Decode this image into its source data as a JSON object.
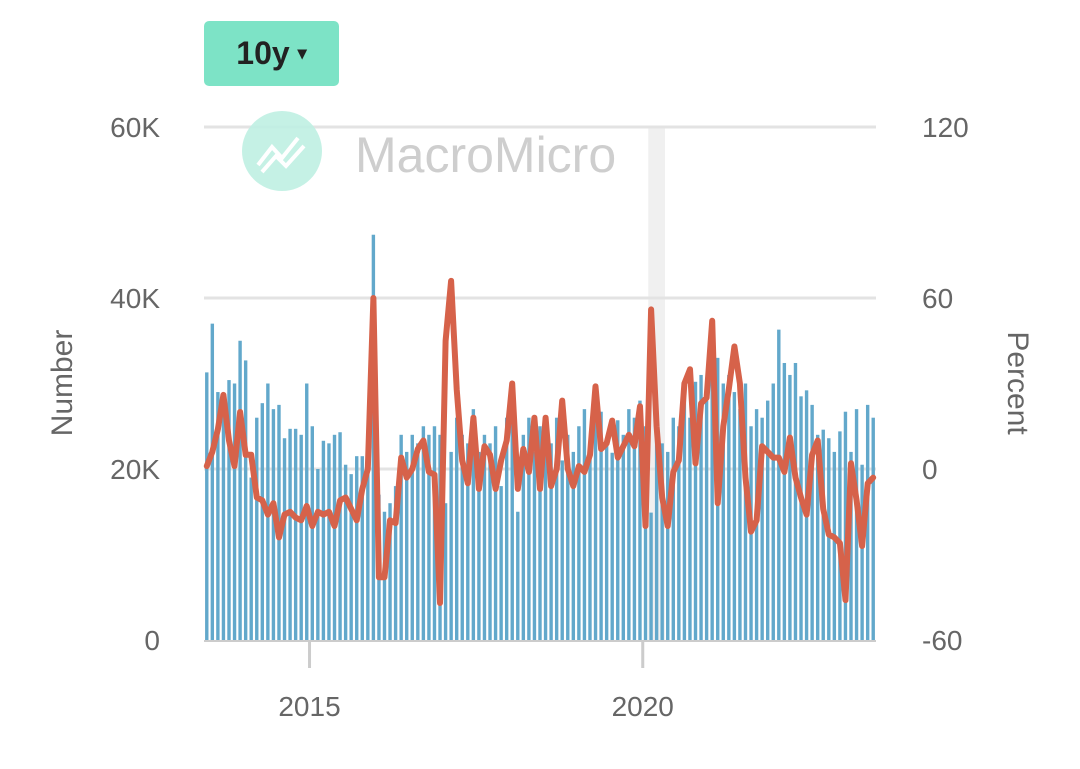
{
  "controls": {
    "range_label": "10y",
    "caret_icon": "caret-down-icon"
  },
  "watermark": {
    "text": "MacroMicro",
    "color": "#bff0e3"
  },
  "chart_data": {
    "type": "bar+line",
    "title": "",
    "x_start": "2013-06",
    "x_end": "2023-06",
    "x_ticks": [
      "2015",
      "2020"
    ],
    "left_axis": {
      "label": "Number",
      "ticks": [
        "0",
        "20K",
        "40K",
        "60K"
      ],
      "range": [
        0,
        60000
      ]
    },
    "right_axis": {
      "label": "Percent",
      "ticks": [
        "-60",
        "0",
        "60",
        "120"
      ],
      "range": [
        -60,
        120
      ]
    },
    "grid": true,
    "shaded_periods": [
      [
        "2020-02",
        "2020-04"
      ]
    ],
    "colors": {
      "bars": "#62a8cb",
      "line": "#d6624a",
      "grid": "#e3e3e3",
      "shade": "#f0f0f0"
    },
    "bars_thousands": [
      31.3,
      37,
      29,
      28,
      30.4,
      30,
      35,
      32.7,
      19,
      26,
      27.7,
      30,
      27,
      27.5,
      23.6,
      24.7,
      24.7,
      24,
      30,
      25,
      20,
      23.3,
      23,
      24,
      24.3,
      20.5,
      19.4,
      21.5,
      21.5,
      23,
      47.4,
      17,
      15,
      16,
      18,
      24,
      22,
      24,
      23,
      25,
      24,
      25,
      24,
      16,
      22,
      26,
      24,
      23,
      27,
      22,
      24,
      23,
      25,
      18,
      26,
      27,
      15,
      24,
      26,
      22,
      25,
      24,
      23,
      26,
      21,
      24,
      22,
      25,
      27,
      23,
      28,
      26.7,
      23.6,
      21.9,
      25.7,
      24,
      27,
      26,
      28,
      25,
      14.9,
      23.5,
      23,
      22,
      26,
      25,
      29.2,
      26,
      30.2,
      31,
      28,
      35.3,
      33,
      30,
      31,
      29,
      27,
      30,
      25,
      27,
      26,
      28,
      30,
      36.3,
      32.4,
      31,
      32.4,
      28.5,
      29.2,
      27.5,
      24,
      24.6,
      23.6,
      22,
      24.4,
      26.7,
      22,
      27,
      20.5,
      27.5,
      26
    ],
    "line_percent": [
      1,
      6,
      14,
      26,
      10,
      1,
      20,
      5,
      5,
      -10,
      -11,
      -16,
      -12,
      -24,
      -16,
      -15,
      -17,
      -18,
      -13,
      -20,
      -15,
      -16,
      -15,
      -20,
      -11,
      -10,
      -14,
      -18,
      -7,
      0,
      60,
      -38,
      -38,
      -18,
      -19,
      4,
      -3,
      0,
      7,
      10,
      -1,
      -2,
      -47,
      45,
      66,
      28,
      3,
      -5,
      18,
      -7,
      8,
      5,
      -7,
      3,
      10,
      30,
      -7,
      7,
      -1,
      18,
      -7,
      18,
      -6,
      0,
      24,
      0,
      -6,
      1,
      -1,
      5,
      29,
      7,
      9,
      17,
      4,
      8,
      12,
      8,
      22,
      -20,
      56,
      15,
      -10,
      -20,
      -1,
      3,
      30,
      35,
      2,
      23,
      25,
      52,
      -12,
      15,
      28,
      43,
      30,
      -3,
      -22,
      -18,
      8,
      6,
      4,
      4,
      -1,
      11,
      -3,
      -10,
      -16,
      5,
      10,
      -14,
      -23,
      -24,
      -26,
      -46,
      2,
      -11,
      -27,
      -5,
      -3
    ]
  }
}
